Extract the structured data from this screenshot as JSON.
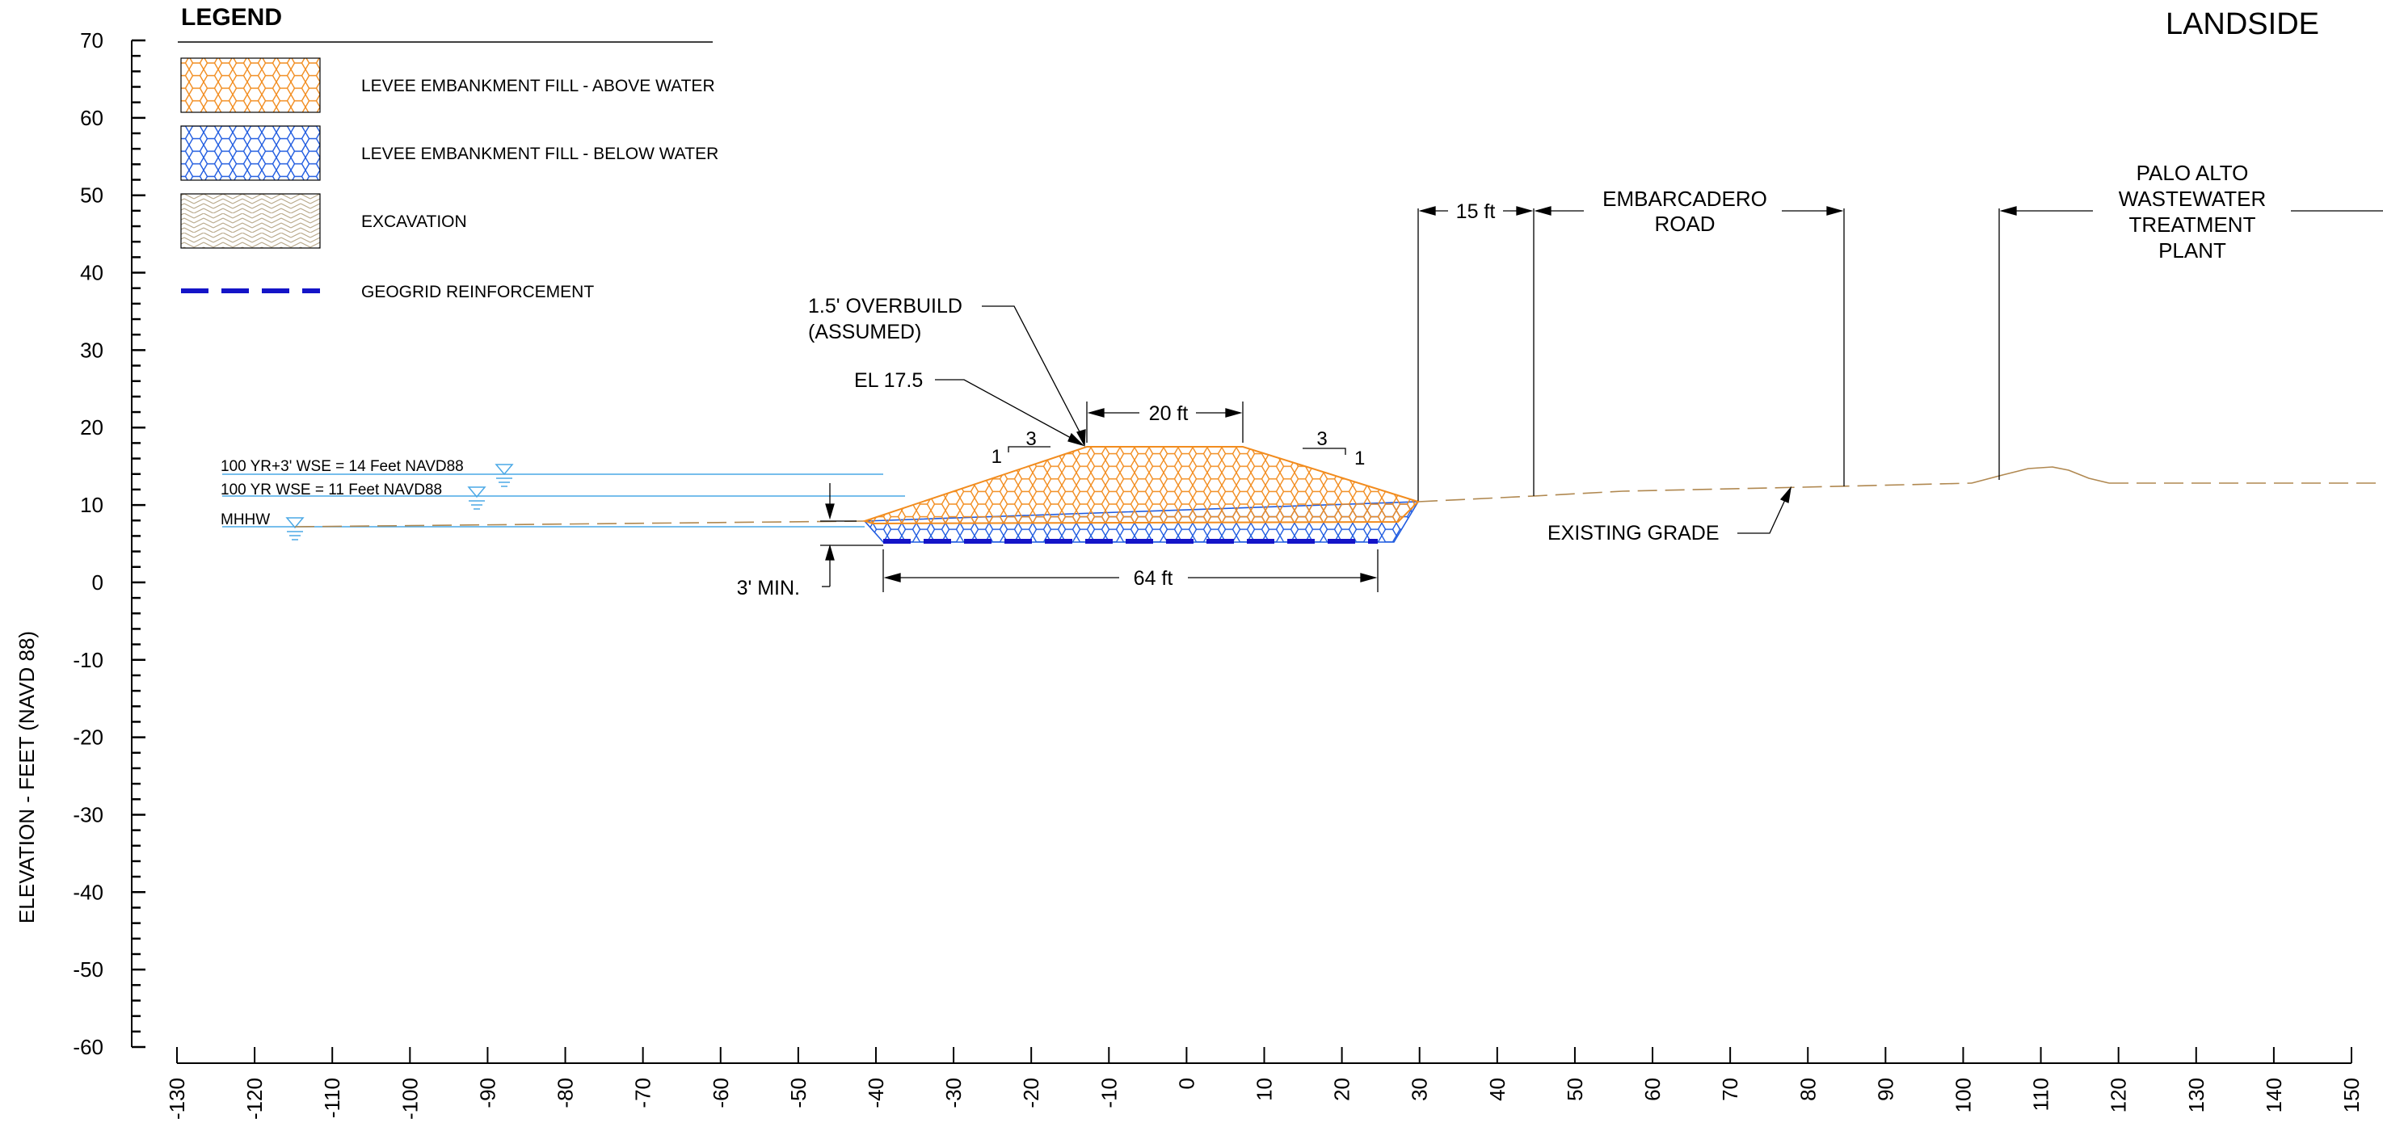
{
  "colors": {
    "above_water": "#F28C1E",
    "below_water": "#1F5BE0",
    "excavation": "#B8A88A",
    "geogrid": "#1414C8",
    "water": "#4AA8E6",
    "grade": "#B08850",
    "ink": "#000000"
  },
  "legend": {
    "title": "LEGEND",
    "items": [
      {
        "label": "LEVEE EMBANKMENT FILL - ABOVE WATER",
        "pattern": "hex-orange"
      },
      {
        "label": "LEVEE EMBANKMENT FILL - BELOW WATER",
        "pattern": "hex-blue"
      },
      {
        "label": "EXCAVATION",
        "pattern": "herringbone-tan"
      },
      {
        "label": "GEOGRID REINFORCEMENT",
        "pattern": "dashed-blue-line"
      }
    ]
  },
  "side_label": "LANDSIDE",
  "axes": {
    "y_label": "ELEVATION - FEET (NAVD 88)",
    "y_ticks": [
      70,
      60,
      50,
      40,
      30,
      20,
      10,
      0,
      -10,
      -20,
      -30,
      -40,
      -50,
      -60
    ],
    "x_ticks": [
      -130,
      -120,
      -110,
      -100,
      -90,
      -80,
      -70,
      -60,
      -50,
      -40,
      -30,
      -20,
      -10,
      0,
      10,
      20,
      30,
      40,
      50,
      60,
      70,
      80,
      90,
      100,
      110,
      120,
      130,
      140,
      150
    ],
    "y_range": [
      -60,
      70
    ],
    "x_range": [
      -130,
      150
    ]
  },
  "water_levels": [
    {
      "label": "100 YR+3' WSE = 14 Feet NAVD88",
      "elevation": 14
    },
    {
      "label": "100 YR WSE = 11 Feet NAVD88",
      "elevation": 11
    },
    {
      "label": "MHHW",
      "elevation": 7
    }
  ],
  "annotations": {
    "overbuild_line1": "1.5' OVERBUILD",
    "overbuild_line2": "(ASSUMED)",
    "crest_elevation": "EL 17.5",
    "crest_width": "20 ft",
    "base_width": "64 ft",
    "min_depth": "3' MIN.",
    "slope_rise": "1",
    "slope_run": "3",
    "offset": "15 ft",
    "road_line1": "EMBARCADERO",
    "road_line2": "ROAD",
    "plant_line1": "PALO ALTO",
    "plant_line2": "WASTEWATER",
    "plant_line3": "TREATMENT",
    "plant_line4": "PLANT",
    "existing_grade": "EXISTING GRADE"
  }
}
